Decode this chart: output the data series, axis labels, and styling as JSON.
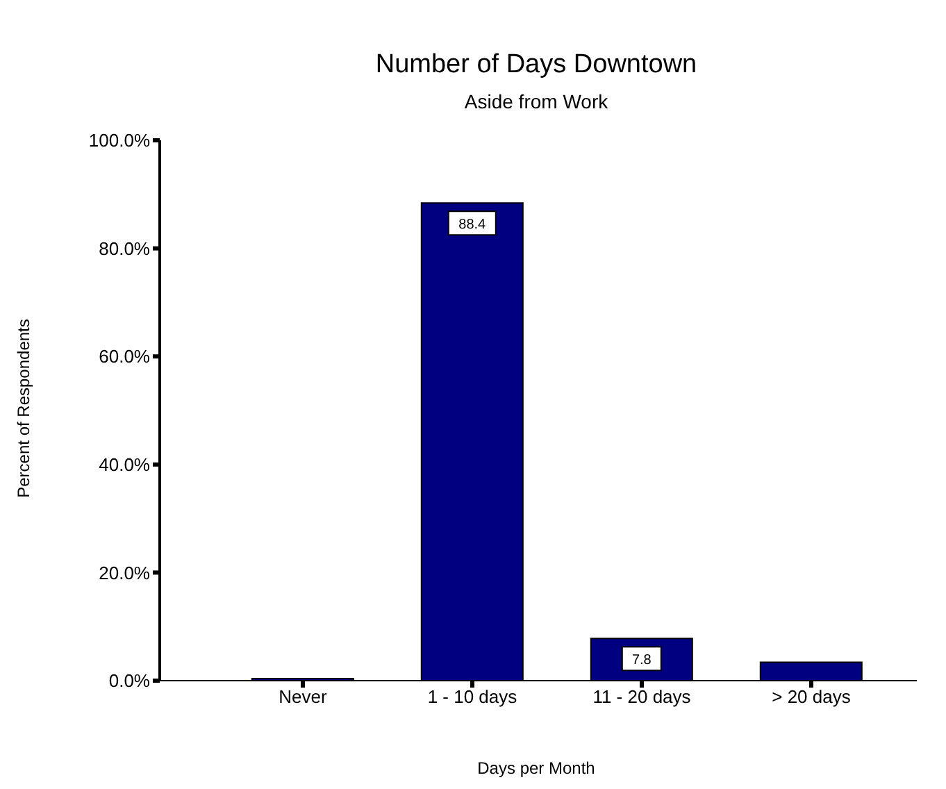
{
  "chart_data": {
    "type": "bar",
    "title": "Number of Days Downtown",
    "subtitle": "Aside from Work",
    "xlabel": "Days per Month",
    "ylabel": "Percent of Respondents",
    "categories": [
      "Never",
      "1 - 10 days",
      "11 - 20 days",
      "> 20 days"
    ],
    "values": [
      0.4,
      88.4,
      7.8,
      3.4
    ],
    "value_labels": [
      null,
      "88.4",
      "7.8",
      null
    ],
    "color": "#000080",
    "ylim": [
      0,
      100
    ],
    "yticks": [
      {
        "value": 0,
        "label": "0.0%"
      },
      {
        "value": 20,
        "label": "20.0%"
      },
      {
        "value": 40,
        "label": "40.0%"
      },
      {
        "value": 60,
        "label": "60.0%"
      },
      {
        "value": 80,
        "label": "80.0%"
      },
      {
        "value": 100,
        "label": "100.0%"
      }
    ],
    "grid": false,
    "legend": false
  }
}
